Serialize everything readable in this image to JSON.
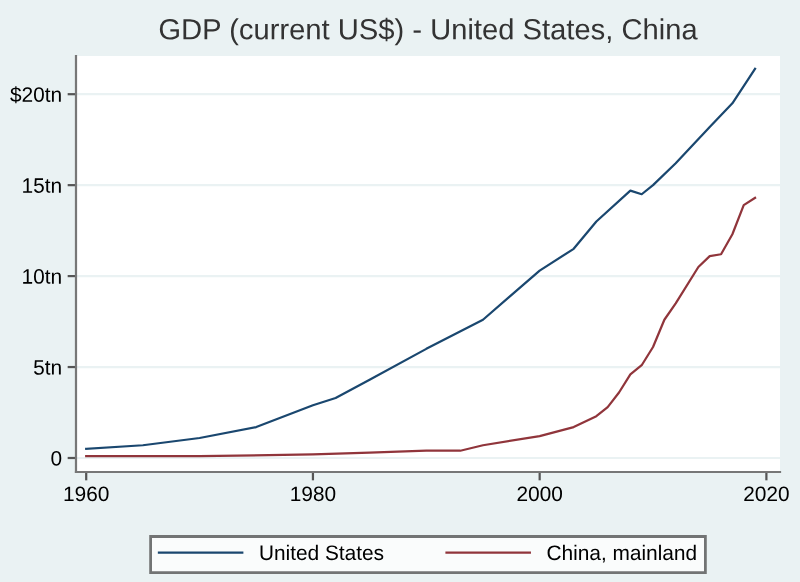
{
  "chart_data": {
    "type": "line",
    "title": "GDP (current US$) - United States, China",
    "xlim": [
      1959.1,
      2021.2
    ],
    "xticks": [
      1960,
      1980,
      2000,
      2020
    ],
    "ylim": [
      -0.77,
      22.1
    ],
    "yticks": [
      {
        "value": 0,
        "label": "0"
      },
      {
        "value": 5,
        "label": "5tn"
      },
      {
        "value": 10,
        "label": "10tn"
      },
      {
        "value": 15,
        "label": "15tn"
      },
      {
        "value": 20,
        "label": "$20tn"
      }
    ],
    "grid": "y",
    "legend": "bottom",
    "line_style": "solid",
    "marker": "none",
    "series": [
      {
        "name": "United States",
        "color": "#1a476f",
        "x": [
          1960,
          1965,
          1970,
          1975,
          1980,
          1982,
          1985,
          1990,
          1995,
          2000,
          2003,
          2005,
          2008,
          2009,
          2010,
          2012,
          2015,
          2017,
          2019
        ],
        "values": [
          0.5,
          0.7,
          1.1,
          1.7,
          2.9,
          3.3,
          4.3,
          6.0,
          7.6,
          10.3,
          11.5,
          13.0,
          14.7,
          14.5,
          15.0,
          16.2,
          18.2,
          19.5,
          21.4
        ]
      },
      {
        "name": "China, mainland",
        "color": "#90353b",
        "x": [
          1960,
          1970,
          1980,
          1985,
          1990,
          1993,
          1995,
          2000,
          2003,
          2005,
          2006,
          2007,
          2008,
          2009,
          2010,
          2011,
          2012,
          2014,
          2015,
          2016,
          2017,
          2018,
          2019
        ],
        "values": [
          0.1,
          0.1,
          0.2,
          0.3,
          0.4,
          0.4,
          0.7,
          1.2,
          1.7,
          2.3,
          2.8,
          3.6,
          4.6,
          5.1,
          6.1,
          7.6,
          8.5,
          10.5,
          11.1,
          11.2,
          12.3,
          13.9,
          14.3
        ]
      }
    ]
  }
}
